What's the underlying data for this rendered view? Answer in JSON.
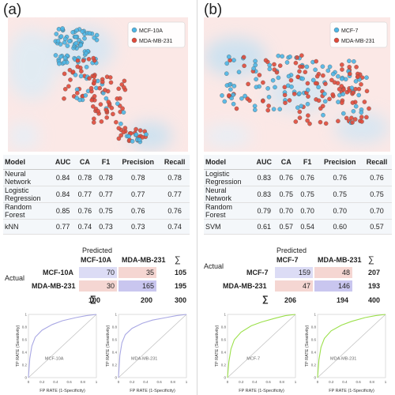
{
  "panels": [
    {
      "label": "(a)",
      "legend": [
        {
          "name": "MCF-10A",
          "color": "#4db6e6"
        },
        {
          "name": "MDA-MB-231",
          "color": "#e04a3a"
        }
      ],
      "table": {
        "headers": [
          "Model",
          "AUC",
          "CA",
          "F1",
          "Precision",
          "Recall"
        ],
        "rows": [
          {
            "model": [
              "Neural",
              "Network"
            ],
            "values": [
              "0.84",
              "0.78",
              "0.78",
              "0.78",
              "0.78"
            ]
          },
          {
            "model": [
              "Logistic",
              "Regression"
            ],
            "values": [
              "0.84",
              "0.77",
              "0.77",
              "0.77",
              "0.77"
            ]
          },
          {
            "model": [
              "Random",
              "Forest"
            ],
            "values": [
              "0.85",
              "0.76",
              "0.75",
              "0.76",
              "0.76"
            ]
          },
          {
            "model": [
              "kNN"
            ],
            "values": [
              "0.77",
              "0.74",
              "0.73",
              "0.73",
              "0.74"
            ]
          }
        ]
      },
      "confusion": {
        "predicted_label": "Predicted",
        "actual_label": "Actual",
        "sigma": "∑",
        "classes": [
          "MCF-10A",
          "MDA-MB-231"
        ],
        "matrix": [
          [
            "70",
            "35"
          ],
          [
            "30",
            "165"
          ]
        ],
        "row_totals": [
          "105",
          "195"
        ],
        "col_totals": [
          "100",
          "200"
        ],
        "total": "300"
      },
      "roc": [
        {
          "label": "MCF-10A",
          "color": "#a9a8e4"
        },
        {
          "label": "MDA-MB-231",
          "color": "#a9a8e4"
        }
      ]
    },
    {
      "label": "(b)",
      "legend": [
        {
          "name": "MCF-7",
          "color": "#4db6e6"
        },
        {
          "name": "MDA-MB-231",
          "color": "#e04a3a"
        }
      ],
      "table": {
        "headers": [
          "Model",
          "AUC",
          "CA",
          "F1",
          "Precision",
          "Recall"
        ],
        "rows": [
          {
            "model": [
              "Logistic",
              "Regression"
            ],
            "values": [
              "0.83",
              "0.76",
              "0.76",
              "0.76",
              "0.76"
            ]
          },
          {
            "model": [
              "Neural",
              "Network"
            ],
            "values": [
              "0.83",
              "0.75",
              "0.75",
              "0.75",
              "0.75"
            ]
          },
          {
            "model": [
              "Random",
              "Forest"
            ],
            "values": [
              "0.79",
              "0.70",
              "0.70",
              "0.70",
              "0.70"
            ]
          },
          {
            "model": [
              "SVM"
            ],
            "values": [
              "0.61",
              "0.57",
              "0.54",
              "0.60",
              "0.57"
            ]
          }
        ]
      },
      "confusion": {
        "predicted_label": "Predicted",
        "actual_label": "Actual",
        "sigma": "∑",
        "classes": [
          "MCF-7",
          "MDA-MB-231"
        ],
        "matrix": [
          [
            "159",
            "48"
          ],
          [
            "47",
            "146"
          ]
        ],
        "row_totals": [
          "207",
          "193"
        ],
        "col_totals": [
          "206",
          "194"
        ],
        "total": "400"
      },
      "roc": [
        {
          "label": "MCF-7",
          "color": "#9be04a"
        },
        {
          "label": "MDA-MB-231",
          "color": "#9be04a"
        }
      ]
    }
  ],
  "chart_data": [
    {
      "type": "scatter",
      "title": "",
      "series": [
        {
          "name": "MCF-10A"
        },
        {
          "name": "MDA-MB-231"
        }
      ]
    },
    {
      "type": "scatter",
      "title": "",
      "series": [
        {
          "name": "MCF-7"
        },
        {
          "name": "MDA-MB-231"
        }
      ]
    },
    {
      "type": "line",
      "xlabel": "FP RATE (1-Specificity)",
      "ylabel": "TP RATE (Sensitivity)",
      "xlim": [
        0,
        1
      ],
      "ylim": [
        0,
        1
      ],
      "x_ticks": [
        "0",
        "0.2",
        "0.4",
        "0.6",
        "0.8",
        "1"
      ],
      "y_ticks": [
        "0",
        "0.2",
        "0.4",
        "0.6",
        "0.8",
        "1"
      ],
      "series": [
        {
          "name": "MCF-10A",
          "x": [
            0,
            0.02,
            0.05,
            0.1,
            0.2,
            0.35,
            0.5,
            0.7,
            0.85,
            1
          ],
          "y": [
            0,
            0.3,
            0.5,
            0.64,
            0.75,
            0.84,
            0.9,
            0.95,
            0.98,
            1
          ]
        }
      ]
    },
    {
      "type": "line",
      "xlabel": "FP RATE (1-Specificity)",
      "ylabel": "TP RATE (Sensitivity)",
      "xlim": [
        0,
        1
      ],
      "ylim": [
        0,
        1
      ],
      "x_ticks": [
        "0",
        "0.2",
        "0.4",
        "0.6",
        "0.8",
        "1"
      ],
      "y_ticks": [
        "0",
        "0.2",
        "0.4",
        "0.6",
        "0.8",
        "1"
      ],
      "series": [
        {
          "name": "MDA-MB-231",
          "x": [
            0,
            0.02,
            0.05,
            0.1,
            0.2,
            0.35,
            0.5,
            0.7,
            0.85,
            1
          ],
          "y": [
            0,
            0.35,
            0.55,
            0.68,
            0.78,
            0.86,
            0.91,
            0.95,
            0.98,
            1
          ]
        }
      ]
    },
    {
      "type": "line",
      "xlabel": "FP RATE (1-Specificity)",
      "ylabel": "TP RATE (Sensitivity)",
      "xlim": [
        0,
        1
      ],
      "ylim": [
        0,
        1
      ],
      "x_ticks": [
        "0",
        "0.2",
        "0.4",
        "0.6",
        "0.8",
        "1"
      ],
      "y_ticks": [
        "0",
        "0.2",
        "0.4",
        "0.6",
        "0.8",
        "1"
      ],
      "series": [
        {
          "name": "MCF-7",
          "x": [
            0,
            0.02,
            0.05,
            0.1,
            0.2,
            0.35,
            0.5,
            0.7,
            0.85,
            1
          ],
          "y": [
            0,
            0.25,
            0.45,
            0.6,
            0.72,
            0.82,
            0.88,
            0.94,
            0.98,
            1
          ]
        }
      ]
    },
    {
      "type": "line",
      "xlabel": "FP RATE (1-Specificity)",
      "ylabel": "TP RATE (Sensitivity)",
      "xlim": [
        0,
        1
      ],
      "ylim": [
        0,
        1
      ],
      "x_ticks": [
        "0",
        "0.2",
        "0.4",
        "0.6",
        "0.8",
        "1"
      ],
      "y_ticks": [
        "0",
        "0.2",
        "0.4",
        "0.6",
        "0.8",
        "1"
      ],
      "series": [
        {
          "name": "MDA-MB-231",
          "x": [
            0,
            0.02,
            0.05,
            0.1,
            0.2,
            0.35,
            0.5,
            0.7,
            0.85,
            1
          ],
          "y": [
            0,
            0.28,
            0.48,
            0.62,
            0.74,
            0.83,
            0.89,
            0.95,
            0.98,
            1
          ]
        }
      ]
    }
  ]
}
